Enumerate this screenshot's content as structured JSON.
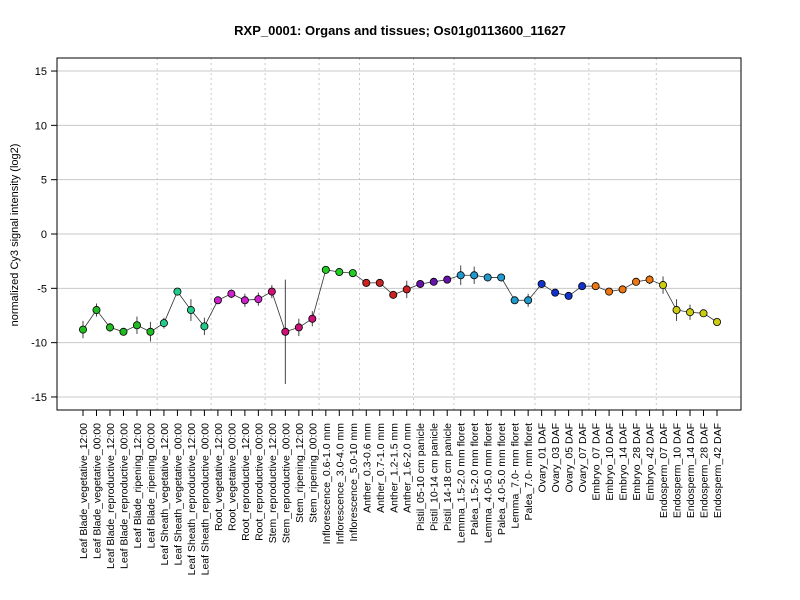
{
  "chart_data": {
    "type": "line",
    "title": "RXP_0001: Organs and tissues; Os01g0113600_11627",
    "ylabel": "normalized Cy3 signal intensity (log2)",
    "xlabel": "",
    "ylim": [
      -16.2,
      16.2
    ],
    "yticks": [
      -15,
      -10,
      -5,
      0,
      5,
      10,
      15
    ],
    "grid": "horizontal",
    "categories": [
      "Leaf Blade_vegetative_12:00",
      "Leaf Blade_vegetative_00:00",
      "Leaf Blade_reproductive_12:00",
      "Leaf Blade_reproductive_00:00",
      "Leaf Blade_ripening_12:00",
      "Leaf Blade_ripening_00:00",
      "Leaf Sheath_vegetative_12:00",
      "Leaf Sheath_vegetative_00:00",
      "Leaf Sheath_reproductive_12:00",
      "Leaf Sheath_reproductive_00:00",
      "Root_vegetative_12:00",
      "Root_vegetative_00:00",
      "Root_reproductive_12:00",
      "Root_reproductive_00:00",
      "Stem_reproductive_12:00",
      "Stem_reproductive_00:00",
      "Stem_ripening_12:00",
      "Stem_ripening_00:00",
      "Inflorescence_0.6-1.0 mm",
      "Inflorescence_3.0-4.0 mm",
      "Inflorescence_5.0-10 mm",
      "Anther_0.3-0.6 mm",
      "Anther_0.7-1.0 mm",
      "Anther_1.2-1.5 mm",
      "Anther_1.6-2.0 mm",
      "Pistil_05-10 cm panicle",
      "Pistil_10-14 cm panicle",
      "Pistil_14-18 cm panicle",
      "Lemma_1.5-2.0 mm floret",
      "Palea_1.5-2.0 mm floret",
      "Lemma_4.0-5.0 mm floret",
      "Palea_4.0-5.0 mm floret",
      "Lemma_7.0- mm floret",
      "Palea_7.0- mm floret",
      "Ovary_01 DAF",
      "Ovary_03 DAF",
      "Ovary_05 DAF",
      "Ovary_07 DAF",
      "Embryo_07 DAF",
      "Embryo_10 DAF",
      "Embryo_14 DAF",
      "Embryo_28 DAF",
      "Embryo_42 DAF",
      "Endosperm_07 DAF",
      "Endosperm_10 DAF",
      "Endosperm_14 DAF",
      "Endosperm_28 DAF",
      "Endosperm_42 DAF"
    ],
    "series": [
      {
        "values": [
          -8.8,
          -7.0,
          -8.6,
          -9.0,
          -8.4,
          -9.0,
          -8.2,
          -5.3,
          -7.0,
          -8.5,
          -6.1,
          -5.5,
          -6.1,
          -6.0,
          -5.3,
          -9.0,
          -8.6,
          -7.8,
          -3.3,
          -3.5,
          -3.6,
          -4.5,
          -4.5,
          -5.6,
          -5.1,
          -4.6,
          -4.4,
          -4.2,
          -3.8,
          -3.8,
          -4.0,
          -4.0,
          -6.1,
          -6.1,
          -4.6,
          -5.4,
          -5.7,
          -4.8,
          -4.8,
          -5.3,
          -5.1,
          -4.4,
          -4.2,
          -4.7,
          -7.0,
          -7.2,
          -7.3,
          -8.1
        ],
        "errors": [
          0.8,
          0.6,
          0.4,
          0.3,
          0.8,
          0.9,
          0.5,
          0.2,
          1.0,
          0.8,
          0.3,
          0.4,
          0.6,
          0.6,
          0.6,
          4.8,
          0.8,
          0.7,
          0.2,
          0.2,
          0.2,
          0.2,
          0.2,
          0.2,
          0.8,
          0.3,
          0.2,
          0.2,
          0.9,
          0.8,
          0.2,
          0.2,
          0.2,
          0.6,
          0.2,
          0.2,
          0.2,
          0.2,
          0.2,
          0.2,
          0.2,
          0.2,
          0.4,
          0.8,
          1.0,
          0.7,
          0.2,
          0.2
        ],
        "colors": [
          "#22bb22",
          "#22bb22",
          "#22bb22",
          "#22bb22",
          "#22bb22",
          "#22bb22",
          "#22cc88",
          "#22cc88",
          "#22cc88",
          "#22cc88",
          "#cc22cc",
          "#cc22cc",
          "#cc22cc",
          "#cc22cc",
          "#cc1177",
          "#cc1177",
          "#cc1177",
          "#cc1177",
          "#22cc22",
          "#22cc22",
          "#22cc22",
          "#cc2222",
          "#cc2222",
          "#cc2222",
          "#cc2222",
          "#6611aa",
          "#6611aa",
          "#6611aa",
          "#2299cc",
          "#2299cc",
          "#2299cc",
          "#2299cc",
          "#2299cc",
          "#2299cc",
          "#1133cc",
          "#1133cc",
          "#1133cc",
          "#1133cc",
          "#ee7711",
          "#ee7711",
          "#ee7711",
          "#ee7711",
          "#ee7711",
          "#cccc11",
          "#cccc11",
          "#cccc11",
          "#cccc11",
          "#cccc11"
        ]
      }
    ],
    "group_separators_after": [
      5,
      9,
      13,
      17,
      20,
      24,
      27,
      33,
      37,
      42
    ]
  }
}
